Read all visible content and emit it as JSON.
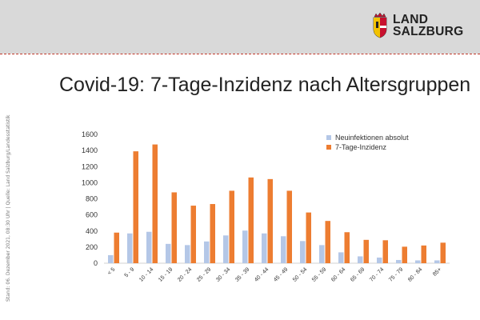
{
  "header": {
    "logo_line1": "LAND",
    "logo_line2": "SALZBURG"
  },
  "title": "Covid-19: 7-Tage-Inzidenz nach Altersgruppen",
  "side_note": "Stand: 06. Dezember 2021, 08:30 Uhr | Quelle: Land Salzburg/Landesstatistik",
  "colors": {
    "header_band": "#d9d9d9",
    "header_rule": "#c0392b",
    "series_absolut": "#b4c7e7",
    "series_inzidenz": "#ed7d31",
    "logo_red": "#c8102e"
  },
  "chart_data": {
    "type": "bar",
    "title": "",
    "xlabel": "",
    "ylabel": "",
    "ylim": [
      0,
      1600
    ],
    "yticks": [
      0,
      200,
      400,
      600,
      800,
      1000,
      1200,
      1400,
      1600
    ],
    "grid": false,
    "legend_position": "top-right",
    "categories": [
      "< 5",
      "5 - 9",
      "10 - 14",
      "15 - 19",
      "20 - 24",
      "25 - 29",
      "30 - 34",
      "35 - 39",
      "40 - 44",
      "45 - 49",
      "50 - 54",
      "55 - 59",
      "60 - 64",
      "65 - 69",
      "70 - 74",
      "75 - 79",
      "80 - 84",
      "85+"
    ],
    "series": [
      {
        "name": "Neuinfektionen absolut",
        "color": "#b4c7e7",
        "values": [
          100,
          370,
          390,
          240,
          225,
          270,
          345,
          405,
          370,
          335,
          275,
          225,
          135,
          85,
          70,
          40,
          35,
          35
        ]
      },
      {
        "name": "7-Tage-Inzidenz",
        "color": "#ed7d31",
        "values": [
          380,
          1390,
          1475,
          880,
          715,
          735,
          900,
          1065,
          1045,
          900,
          630,
          525,
          385,
          290,
          285,
          205,
          220,
          255
        ]
      }
    ]
  }
}
